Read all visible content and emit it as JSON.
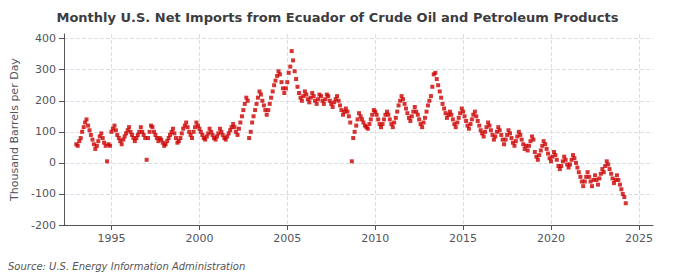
{
  "chart_data": {
    "type": "scatter",
    "title": "Monthly U.S. Net Imports from Ecuador of Crude Oil and Petroleum Products",
    "ylabel": "Thousand Barrels per Day",
    "source": "Source: U.S. Energy Information Administration",
    "color": "#cc0000",
    "marker": "square",
    "grid": true,
    "xlim": [
      1992.3,
      2025.8
    ],
    "xticks": [
      1995,
      2000,
      2005,
      2010,
      2015,
      2020,
      2025
    ],
    "ylim": [
      -200,
      415
    ],
    "yticks": [
      -200,
      -100,
      0,
      100,
      200,
      300,
      400
    ],
    "x": [
      1993.0,
      1993.08,
      1993.17,
      1993.25,
      1993.33,
      1993.42,
      1993.5,
      1993.58,
      1993.67,
      1993.75,
      1993.83,
      1993.92,
      1994.0,
      1994.08,
      1994.17,
      1994.25,
      1994.33,
      1994.42,
      1994.5,
      1994.58,
      1994.67,
      1994.75,
      1994.83,
      1994.92,
      1995.0,
      1995.08,
      1995.17,
      1995.25,
      1995.33,
      1995.42,
      1995.5,
      1995.58,
      1995.67,
      1995.75,
      1995.83,
      1995.92,
      1996.0,
      1996.08,
      1996.17,
      1996.25,
      1996.33,
      1996.42,
      1996.5,
      1996.58,
      1996.67,
      1996.75,
      1996.83,
      1996.92,
      1997.0,
      1997.08,
      1997.17,
      1997.25,
      1997.33,
      1997.42,
      1997.5,
      1997.58,
      1997.67,
      1997.75,
      1997.83,
      1997.92,
      1998.0,
      1998.08,
      1998.17,
      1998.25,
      1998.33,
      1998.42,
      1998.5,
      1998.58,
      1998.67,
      1998.75,
      1998.83,
      1998.92,
      1999.0,
      1999.08,
      1999.17,
      1999.25,
      1999.33,
      1999.42,
      1999.5,
      1999.58,
      1999.67,
      1999.75,
      1999.83,
      1999.92,
      2000.0,
      2000.08,
      2000.17,
      2000.25,
      2000.33,
      2000.42,
      2000.5,
      2000.58,
      2000.67,
      2000.75,
      2000.83,
      2000.92,
      2001.0,
      2001.08,
      2001.17,
      2001.25,
      2001.33,
      2001.42,
      2001.5,
      2001.58,
      2001.67,
      2001.75,
      2001.83,
      2001.92,
      2002.0,
      2002.08,
      2002.17,
      2002.25,
      2002.33,
      2002.42,
      2002.5,
      2002.58,
      2002.67,
      2002.75,
      2002.83,
      2002.92,
      2003.0,
      2003.08,
      2003.17,
      2003.25,
      2003.33,
      2003.42,
      2003.5,
      2003.58,
      2003.67,
      2003.75,
      2003.83,
      2003.92,
      2004.0,
      2004.08,
      2004.17,
      2004.25,
      2004.33,
      2004.42,
      2004.5,
      2004.58,
      2004.67,
      2004.75,
      2004.83,
      2004.92,
      2005.0,
      2005.08,
      2005.17,
      2005.25,
      2005.33,
      2005.42,
      2005.5,
      2005.58,
      2005.67,
      2005.75,
      2005.83,
      2005.92,
      2006.0,
      2006.08,
      2006.17,
      2006.25,
      2006.33,
      2006.42,
      2006.5,
      2006.58,
      2006.67,
      2006.75,
      2006.83,
      2006.92,
      2007.0,
      2007.08,
      2007.17,
      2007.25,
      2007.33,
      2007.42,
      2007.5,
      2007.58,
      2007.67,
      2007.75,
      2007.83,
      2007.92,
      2008.0,
      2008.08,
      2008.17,
      2008.25,
      2008.33,
      2008.42,
      2008.5,
      2008.58,
      2008.67,
      2008.75,
      2008.83,
      2008.92,
      2009.0,
      2009.08,
      2009.17,
      2009.25,
      2009.33,
      2009.42,
      2009.5,
      2009.58,
      2009.67,
      2009.75,
      2009.83,
      2009.92,
      2010.0,
      2010.08,
      2010.17,
      2010.25,
      2010.33,
      2010.42,
      2010.5,
      2010.58,
      2010.67,
      2010.75,
      2010.83,
      2010.92,
      2011.0,
      2011.08,
      2011.17,
      2011.25,
      2011.33,
      2011.42,
      2011.5,
      2011.58,
      2011.67,
      2011.75,
      2011.83,
      2011.92,
      2012.0,
      2012.08,
      2012.17,
      2012.25,
      2012.33,
      2012.42,
      2012.5,
      2012.58,
      2012.67,
      2012.75,
      2012.83,
      2012.92,
      2013.0,
      2013.08,
      2013.17,
      2013.25,
      2013.33,
      2013.42,
      2013.5,
      2013.58,
      2013.67,
      2013.75,
      2013.83,
      2013.92,
      2014.0,
      2014.08,
      2014.17,
      2014.25,
      2014.33,
      2014.42,
      2014.5,
      2014.58,
      2014.67,
      2014.75,
      2014.83,
      2014.92,
      2015.0,
      2015.08,
      2015.17,
      2015.25,
      2015.33,
      2015.42,
      2015.5,
      2015.58,
      2015.67,
      2015.75,
      2015.83,
      2015.92,
      2016.0,
      2016.08,
      2016.17,
      2016.25,
      2016.33,
      2016.42,
      2016.5,
      2016.58,
      2016.67,
      2016.75,
      2016.83,
      2016.92,
      2017.0,
      2017.08,
      2017.17,
      2017.25,
      2017.33,
      2017.42,
      2017.5,
      2017.58,
      2017.67,
      2017.75,
      2017.83,
      2017.92,
      2018.0,
      2018.08,
      2018.17,
      2018.25,
      2018.33,
      2018.42,
      2018.5,
      2018.58,
      2018.67,
      2018.75,
      2018.83,
      2018.92,
      2019.0,
      2019.08,
      2019.17,
      2019.25,
      2019.33,
      2019.42,
      2019.5,
      2019.58,
      2019.67,
      2019.75,
      2019.83,
      2019.92,
      2020.0,
      2020.08,
      2020.17,
      2020.25,
      2020.33,
      2020.42,
      2020.5,
      2020.58,
      2020.67,
      2020.75,
      2020.83,
      2020.92,
      2021.0,
      2021.08,
      2021.17,
      2021.25,
      2021.33,
      2021.42,
      2021.5,
      2021.58,
      2021.67,
      2021.75,
      2021.83,
      2021.92,
      2022.0,
      2022.08,
      2022.17,
      2022.25,
      2022.33,
      2022.42,
      2022.5,
      2022.58,
      2022.67,
      2022.75,
      2022.83,
      2022.92,
      2023.0,
      2023.08,
      2023.17,
      2023.25,
      2023.33,
      2023.42,
      2023.5,
      2023.58,
      2023.67,
      2023.75,
      2023.83,
      2023.92,
      2024.0,
      2024.08,
      2024.17,
      2024.25
    ],
    "values": [
      60,
      55,
      70,
      80,
      100,
      115,
      130,
      140,
      120,
      105,
      90,
      75,
      60,
      45,
      55,
      70,
      85,
      95,
      80,
      65,
      55,
      5,
      60,
      55,
      100,
      110,
      120,
      105,
      90,
      80,
      70,
      60,
      75,
      85,
      95,
      105,
      115,
      100,
      90,
      80,
      70,
      80,
      90,
      100,
      115,
      100,
      90,
      80,
      10,
      80,
      100,
      120,
      115,
      100,
      90,
      80,
      70,
      80,
      75,
      65,
      55,
      60,
      70,
      80,
      90,
      100,
      110,
      95,
      80,
      65,
      70,
      80,
      95,
      110,
      120,
      130,
      115,
      100,
      90,
      80,
      100,
      115,
      130,
      120,
      110,
      100,
      90,
      80,
      75,
      85,
      95,
      110,
      100,
      90,
      80,
      75,
      85,
      95,
      110,
      100,
      90,
      80,
      75,
      85,
      95,
      105,
      115,
      125,
      115,
      100,
      90,
      110,
      130,
      150,
      170,
      190,
      210,
      200,
      80,
      100,
      130,
      150,
      170,
      190,
      210,
      230,
      220,
      200,
      185,
      170,
      155,
      170,
      190,
      210,
      230,
      250,
      265,
      280,
      295,
      285,
      260,
      240,
      225,
      240,
      260,
      290,
      310,
      360,
      330,
      295,
      270,
      245,
      225,
      210,
      200,
      215,
      230,
      220,
      205,
      195,
      210,
      225,
      215,
      200,
      190,
      205,
      220,
      215,
      200,
      190,
      205,
      220,
      215,
      200,
      190,
      180,
      195,
      205,
      215,
      200,
      185,
      170,
      155,
      165,
      175,
      165,
      150,
      130,
      5,
      80,
      100,
      120,
      140,
      160,
      150,
      140,
      130,
      120,
      115,
      110,
      125,
      140,
      155,
      170,
      165,
      155,
      140,
      125,
      115,
      125,
      140,
      155,
      165,
      155,
      140,
      125,
      115,
      130,
      145,
      165,
      185,
      200,
      215,
      205,
      190,
      175,
      160,
      145,
      135,
      150,
      165,
      180,
      165,
      155,
      140,
      125,
      115,
      130,
      145,
      165,
      185,
      200,
      215,
      245,
      285,
      290,
      270,
      250,
      230,
      210,
      190,
      175,
      160,
      145,
      155,
      165,
      155,
      140,
      125,
      115,
      130,
      145,
      160,
      175,
      165,
      150,
      135,
      120,
      110,
      125,
      140,
      155,
      165,
      150,
      135,
      120,
      105,
      95,
      85,
      100,
      115,
      130,
      120,
      105,
      90,
      75,
      85,
      100,
      115,
      105,
      90,
      75,
      60,
      75,
      90,
      105,
      95,
      80,
      65,
      55,
      70,
      85,
      100,
      90,
      75,
      60,
      45,
      55,
      40,
      55,
      70,
      85,
      75,
      35,
      20,
      10,
      25,
      40,
      55,
      70,
      60,
      45,
      30,
      15,
      5,
      20,
      35,
      25,
      10,
      -10,
      -20,
      -10,
      5,
      20,
      10,
      -5,
      -15,
      -5,
      10,
      25,
      15,
      0,
      -15,
      -30,
      -45,
      -60,
      -75,
      -60,
      -45,
      -30,
      -45,
      -60,
      -75,
      -55,
      -40,
      -55,
      -70,
      -50,
      -35,
      -20,
      -30,
      -10,
      5,
      -5,
      -20,
      -35,
      -50,
      -65,
      -55,
      -40,
      -55,
      -70,
      -85,
      -100,
      -110,
      -130
    ]
  }
}
